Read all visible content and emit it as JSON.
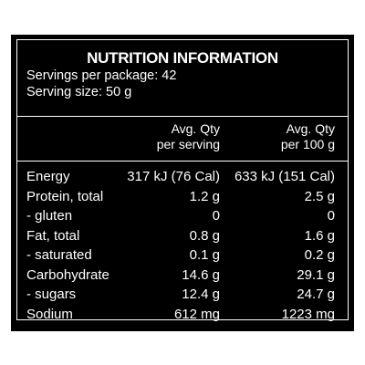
{
  "panel": {
    "title": "NUTRITION INFORMATION",
    "servings_per_package": "Servings per package: 42",
    "serving_size": "Serving size: 50 g",
    "header": {
      "col1_line1": "Avg. Qty",
      "col1_line2": "per serving",
      "col2_line1": "Avg. Qty",
      "col2_line2": "per 100 g"
    },
    "rows": [
      {
        "name": "Energy",
        "per_serving": "317 kJ (76 Cal)",
        "per_100g": "633 kJ (151 Cal)"
      },
      {
        "name": "Protein, total",
        "per_serving": "1.2 g",
        "per_100g": "2.5 g"
      },
      {
        "name": "- gluten",
        "per_serving": "0",
        "per_100g": "0"
      },
      {
        "name": "Fat, total",
        "per_serving": "0.8 g",
        "per_100g": "1.6 g"
      },
      {
        "name": "- saturated",
        "per_serving": "0.1 g",
        "per_100g": "0.2 g"
      },
      {
        "name": "Carbohydrate",
        "per_serving": "14.6 g",
        "per_100g": "29.1 g"
      },
      {
        "name": "- sugars",
        "per_serving": "12.4 g",
        "per_100g": "24.7 g"
      },
      {
        "name": "Sodium",
        "per_serving": "612 mg",
        "per_100g": "1223 mg"
      }
    ],
    "colors": {
      "background": "#000000",
      "text": "#ffffff",
      "page": "#ffffff"
    }
  }
}
